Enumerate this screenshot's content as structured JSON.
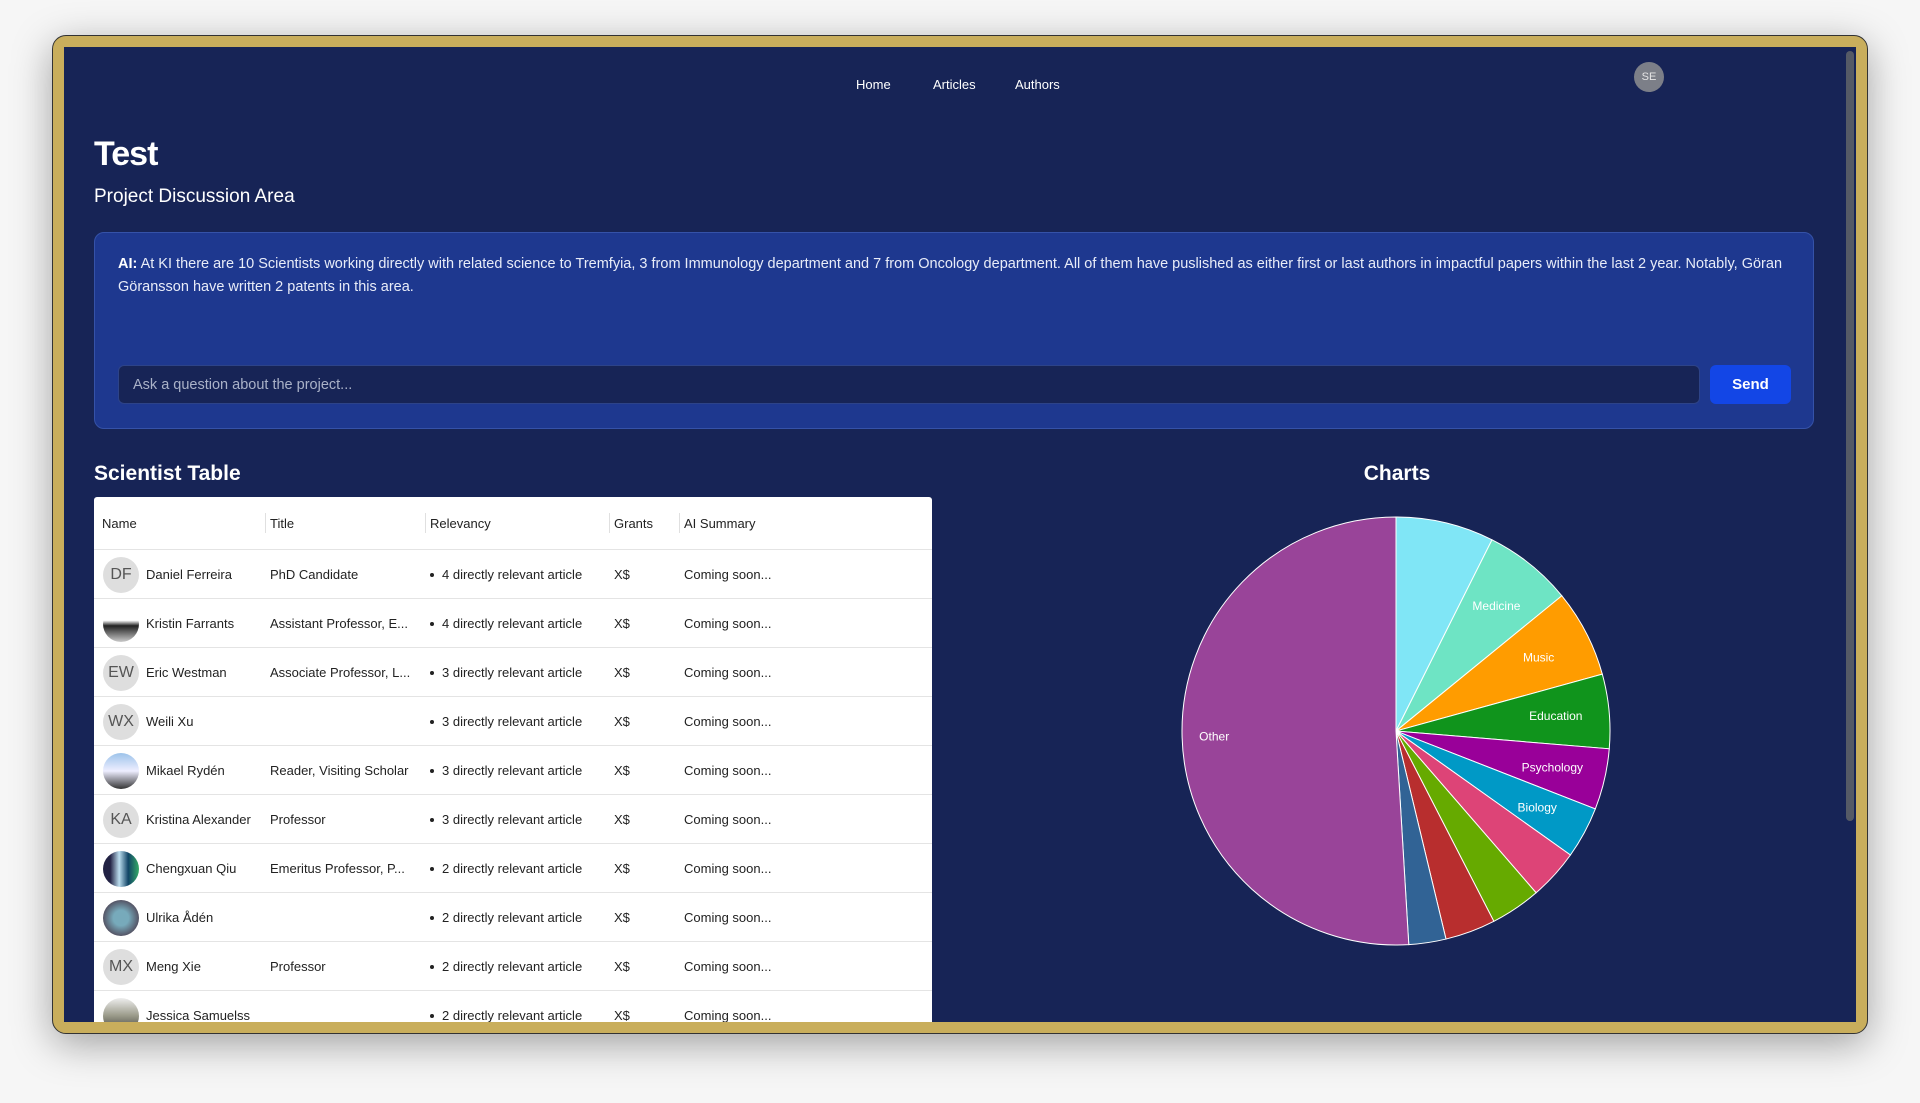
{
  "nav": {
    "items": [
      "Home",
      "Articles",
      "Authors"
    ],
    "user_initials": "SE"
  },
  "page": {
    "title": "Test",
    "subtitle": "Project Discussion Area"
  },
  "ai": {
    "prefix": "AI:",
    "message": "At KI there are 10 Scientists working directly with related science to Tremfyia, 3 from Immunology department and 7 from Oncology department. All of them have puslished as either first or last authors in impactful papers within the last 2 year. Notably, Göran Göransson have written 2 patents in this area.",
    "input_placeholder": "Ask a question about the project...",
    "input_value": "",
    "send_label": "Send"
  },
  "table": {
    "heading": "Scientist Table",
    "columns": [
      "Name",
      "Title",
      "Relevancy",
      "Grants",
      "AI Summary"
    ],
    "rows": [
      {
        "initials": "DF",
        "photo": false,
        "name": "Daniel Ferreira",
        "title": "PhD Candidate",
        "relevancy": "4 directly relevant article",
        "grants": "X$",
        "summary": "Coming soon..."
      },
      {
        "initials": "",
        "photo": true,
        "name": "Kristin Farrants",
        "title": "Assistant Professor, E...",
        "relevancy": "4 directly relevant article",
        "grants": "X$",
        "summary": "Coming soon..."
      },
      {
        "initials": "EW",
        "photo": false,
        "name": "Eric Westman",
        "title": "Associate Professor, L...",
        "relevancy": "3 directly relevant article",
        "grants": "X$",
        "summary": "Coming soon..."
      },
      {
        "initials": "WX",
        "photo": false,
        "name": "Weili Xu",
        "title": "",
        "relevancy": "3 directly relevant article",
        "grants": "X$",
        "summary": "Coming soon..."
      },
      {
        "initials": "",
        "photo": true,
        "name": "Mikael Rydén",
        "title": "Reader, Visiting Scholar",
        "relevancy": "3 directly relevant article",
        "grants": "X$",
        "summary": "Coming soon..."
      },
      {
        "initials": "KA",
        "photo": false,
        "name": "Kristina Alexander",
        "title": "Professor",
        "relevancy": "3 directly relevant article",
        "grants": "X$",
        "summary": "Coming soon..."
      },
      {
        "initials": "",
        "photo": true,
        "name": "Chengxuan Qiu",
        "title": "Emeritus Professor, P...",
        "relevancy": "2 directly relevant article",
        "grants": "X$",
        "summary": "Coming soon..."
      },
      {
        "initials": "",
        "photo": true,
        "name": "Ulrika Ådén",
        "title": "",
        "relevancy": "2 directly relevant article",
        "grants": "X$",
        "summary": "Coming soon..."
      },
      {
        "initials": "MX",
        "photo": false,
        "name": "Meng Xie",
        "title": "Professor",
        "relevancy": "2 directly relevant article",
        "grants": "X$",
        "summary": "Coming soon..."
      },
      {
        "initials": "",
        "photo": true,
        "name": "Jessica Samuelss",
        "title": "",
        "relevancy": "2 directly relevant article",
        "grants": "X$",
        "summary": "Coming soon..."
      }
    ]
  },
  "charts": {
    "heading": "Charts"
  },
  "chart_data": {
    "type": "pie",
    "title": "",
    "slices": [
      {
        "label": "",
        "value": 7.4,
        "color": "#80e6f6"
      },
      {
        "label": "Medicine",
        "value": 6.7,
        "color": "#6ee4c4"
      },
      {
        "label": "Music",
        "value": 6.6,
        "color": "#ff9c00"
      },
      {
        "label": "Education",
        "value": 5.6,
        "color": "#10941c"
      },
      {
        "label": "Psychology",
        "value": 4.6,
        "color": "#990099"
      },
      {
        "label": "Biology",
        "value": 3.9,
        "color": "#0099c6"
      },
      {
        "label": "",
        "value": 3.8,
        "color": "#dd4477"
      },
      {
        "label": "",
        "value": 3.8,
        "color": "#66aa00"
      },
      {
        "label": "",
        "value": 3.8,
        "color": "#b82e2e"
      },
      {
        "label": "",
        "value": 2.8,
        "color": "#316395"
      },
      {
        "label": "Other",
        "value": 50.9,
        "color": "#994499"
      }
    ]
  }
}
